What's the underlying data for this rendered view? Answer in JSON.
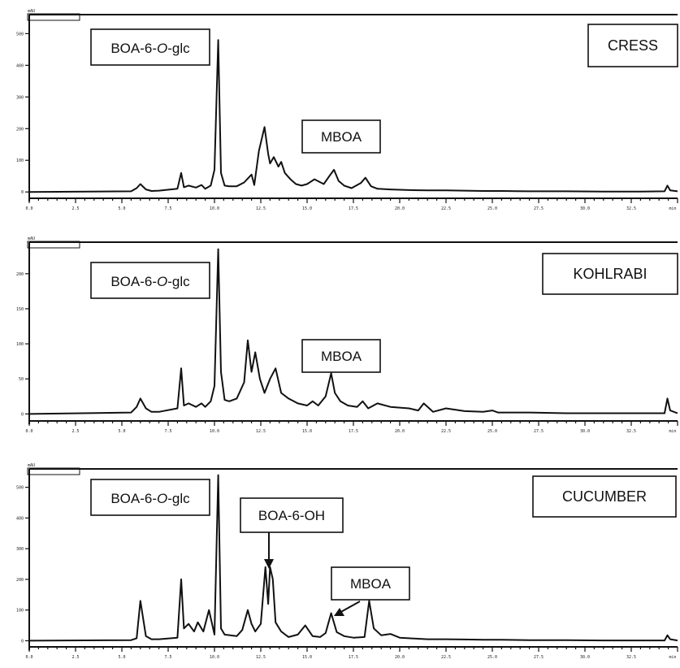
{
  "chart_data": [
    {
      "type": "line",
      "sample": "CRESS",
      "unit": "mAU",
      "compound_labels": [
        {
          "name": "BOA-6-O-glc",
          "text": "BOA-6-",
          "italic": "O",
          "suffix": "-glc"
        },
        {
          "name": "MBOA",
          "text": "MBOA"
        }
      ],
      "x_tick_labels": [
        "0.0",
        "2.5",
        "5.0",
        "7.5",
        "10.0",
        "12.5",
        "15.0",
        "17.5",
        "20.0",
        "22.5",
        "25.0",
        "27.5",
        "30.0",
        "32.5",
        "min"
      ],
      "y_tick_labels": [
        "0",
        "100",
        "200",
        "300",
        "400",
        "500"
      ],
      "ylim": [
        -20,
        560
      ],
      "xlim": [
        0,
        35
      ],
      "x": [
        0,
        5.5,
        5.8,
        6.0,
        6.3,
        6.6,
        7,
        8.0,
        8.2,
        8.35,
        8.6,
        9,
        9.3,
        9.5,
        9.8,
        10.0,
        10.2,
        10.35,
        10.55,
        10.8,
        11.2,
        11.6,
        12.0,
        12.15,
        12.4,
        12.7,
        12.9,
        13.0,
        13.2,
        13.45,
        13.6,
        13.8,
        14.1,
        14.4,
        14.7,
        15,
        15.4,
        15.9,
        16.2,
        16.45,
        16.7,
        17,
        17.4,
        17.9,
        18.15,
        18.45,
        18.8,
        19.5,
        20.5,
        21.5,
        22.5,
        23.5,
        24.5,
        25.5,
        27,
        29,
        31,
        33,
        34.3,
        34.45,
        34.6,
        35
      ],
      "y": [
        0,
        2,
        12,
        25,
        8,
        3,
        4,
        10,
        60,
        15,
        20,
        14,
        22,
        10,
        20,
        70,
        480,
        60,
        20,
        18,
        18,
        30,
        55,
        22,
        130,
        205,
        120,
        90,
        110,
        80,
        95,
        60,
        40,
        25,
        20,
        25,
        40,
        25,
        50,
        70,
        35,
        20,
        12,
        28,
        45,
        18,
        10,
        8,
        6,
        5,
        5,
        4,
        3,
        3,
        2,
        2,
        1,
        1,
        2,
        20,
        5,
        2
      ],
      "grid": false
    },
    {
      "type": "line",
      "sample": "KOHLRABI",
      "unit": "mAU",
      "compound_labels": [
        {
          "name": "BOA-6-O-glc",
          "text": "BOA-6-",
          "italic": "O",
          "suffix": "-glc"
        },
        {
          "name": "MBOA",
          "text": "MBOA"
        }
      ],
      "x_tick_labels": [
        "0.0",
        "2.5",
        "5.0",
        "7.5",
        "10.0",
        "12.5",
        "15.0",
        "17.5",
        "20.0",
        "22.5",
        "25.0",
        "27.5",
        "30.0",
        "32.5",
        "min"
      ],
      "y_tick_labels": [
        "0",
        "50",
        "100",
        "150",
        "200"
      ],
      "ylim": [
        -10,
        245
      ],
      "xlim": [
        0,
        35
      ],
      "x": [
        0,
        5.5,
        5.8,
        6.0,
        6.3,
        6.6,
        7,
        8.0,
        8.2,
        8.35,
        8.6,
        9,
        9.3,
        9.5,
        9.8,
        10.0,
        10.2,
        10.35,
        10.55,
        10.8,
        11.2,
        11.6,
        11.8,
        12.0,
        12.2,
        12.45,
        12.7,
        13.0,
        13.3,
        13.6,
        14,
        14.5,
        15,
        15.3,
        15.6,
        16.0,
        16.3,
        16.5,
        16.8,
        17.2,
        17.7,
        18.0,
        18.3,
        18.8,
        19.5,
        20.5,
        21.0,
        21.3,
        21.8,
        22.5,
        23.5,
        24.5,
        25.0,
        25.3,
        26,
        27,
        29,
        31,
        33,
        34.3,
        34.45,
        34.6,
        35
      ],
      "y": [
        0,
        2,
        10,
        22,
        8,
        3,
        3,
        8,
        65,
        12,
        15,
        10,
        15,
        10,
        18,
        40,
        235,
        60,
        20,
        18,
        22,
        45,
        105,
        60,
        88,
        50,
        30,
        50,
        65,
        30,
        22,
        15,
        12,
        18,
        12,
        25,
        58,
        30,
        18,
        12,
        10,
        18,
        8,
        15,
        10,
        8,
        5,
        15,
        3,
        8,
        4,
        3,
        5,
        2,
        2,
        2,
        1,
        1,
        1,
        1,
        22,
        5,
        1
      ],
      "grid": false
    },
    {
      "type": "line",
      "sample": "CUCUMBER",
      "unit": "mAU",
      "compound_labels": [
        {
          "name": "BOA-6-O-glc",
          "text": "BOA-6-",
          "italic": "O",
          "suffix": "-glc"
        },
        {
          "name": "BOA-6-OH",
          "text": "BOA-6-OH"
        },
        {
          "name": "MBOA",
          "text": "MBOA"
        }
      ],
      "x_tick_labels": [
        "0.0",
        "2.5",
        "5.0",
        "7.5",
        "10.0",
        "12.5",
        "15.0",
        "17.5",
        "20.0",
        "22.5",
        "25.0",
        "27.5",
        "30.0",
        "32.5",
        "min"
      ],
      "y_tick_labels": [
        "0",
        "100",
        "200",
        "300",
        "400",
        "500"
      ],
      "ylim": [
        -20,
        560
      ],
      "xlim": [
        0,
        35
      ],
      "x": [
        0,
        5.5,
        5.8,
        6.0,
        6.3,
        6.6,
        7,
        8.0,
        8.2,
        8.35,
        8.6,
        8.9,
        9.1,
        9.4,
        9.7,
        10.0,
        10.2,
        10.35,
        10.55,
        10.85,
        11.2,
        11.5,
        11.8,
        12.0,
        12.2,
        12.5,
        12.75,
        12.9,
        13.0,
        13.15,
        13.3,
        13.6,
        14,
        14.5,
        14.9,
        15.3,
        15.7,
        16.0,
        16.3,
        16.6,
        17.0,
        17.5,
        18.1,
        18.35,
        18.6,
        19,
        19.5,
        20.0,
        20.5,
        21.5,
        22.5,
        23.5,
        24.5,
        25.5,
        27,
        29,
        31,
        33,
        34.3,
        34.45,
        34.6,
        35
      ],
      "y": [
        0,
        2,
        8,
        130,
        15,
        5,
        5,
        10,
        200,
        40,
        55,
        30,
        60,
        30,
        100,
        20,
        540,
        40,
        20,
        18,
        15,
        35,
        100,
        55,
        30,
        55,
        240,
        120,
        240,
        200,
        60,
        30,
        12,
        20,
        50,
        15,
        12,
        25,
        90,
        28,
        15,
        10,
        12,
        130,
        40,
        18,
        22,
        10,
        8,
        5,
        5,
        4,
        3,
        3,
        2,
        2,
        1,
        1,
        1,
        18,
        5,
        1
      ],
      "grid": false
    }
  ]
}
